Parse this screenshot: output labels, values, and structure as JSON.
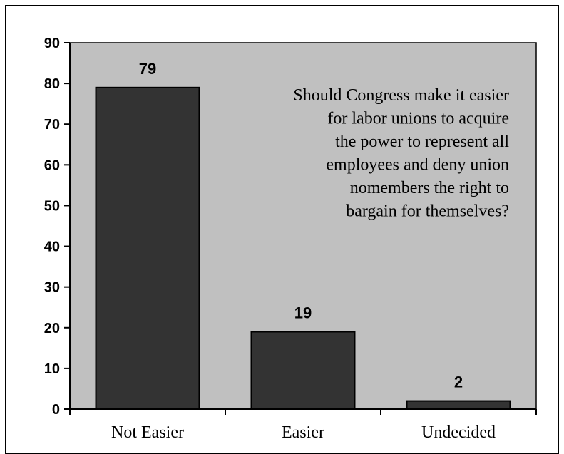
{
  "chart_data": {
    "type": "bar",
    "categories": [
      "Not Easier",
      "Easier",
      "Undecided"
    ],
    "values": [
      79,
      19,
      2
    ],
    "data_labels": [
      "79",
      "19",
      "2"
    ],
    "ylim": [
      0,
      90
    ],
    "yticks": [
      0,
      10,
      20,
      30,
      40,
      50,
      60,
      70,
      80,
      90
    ],
    "ytick_labels": [
      "0",
      "10",
      "20",
      "30",
      "40",
      "50",
      "60",
      "70",
      "80",
      "90"
    ],
    "title": "",
    "xlabel": "",
    "ylabel": "",
    "annotation_lines": [
      "Should Congress make it easier",
      "for labor unions to acquire",
      "the power to represent all",
      "employees and deny union",
      "nomembers the right to",
      "bargain for themselves?"
    ],
    "legend": "none",
    "grid": false,
    "colors": {
      "plot_background": "#c0c0c0",
      "bar_fill": "#333333",
      "bar_stroke": "#000000"
    }
  }
}
